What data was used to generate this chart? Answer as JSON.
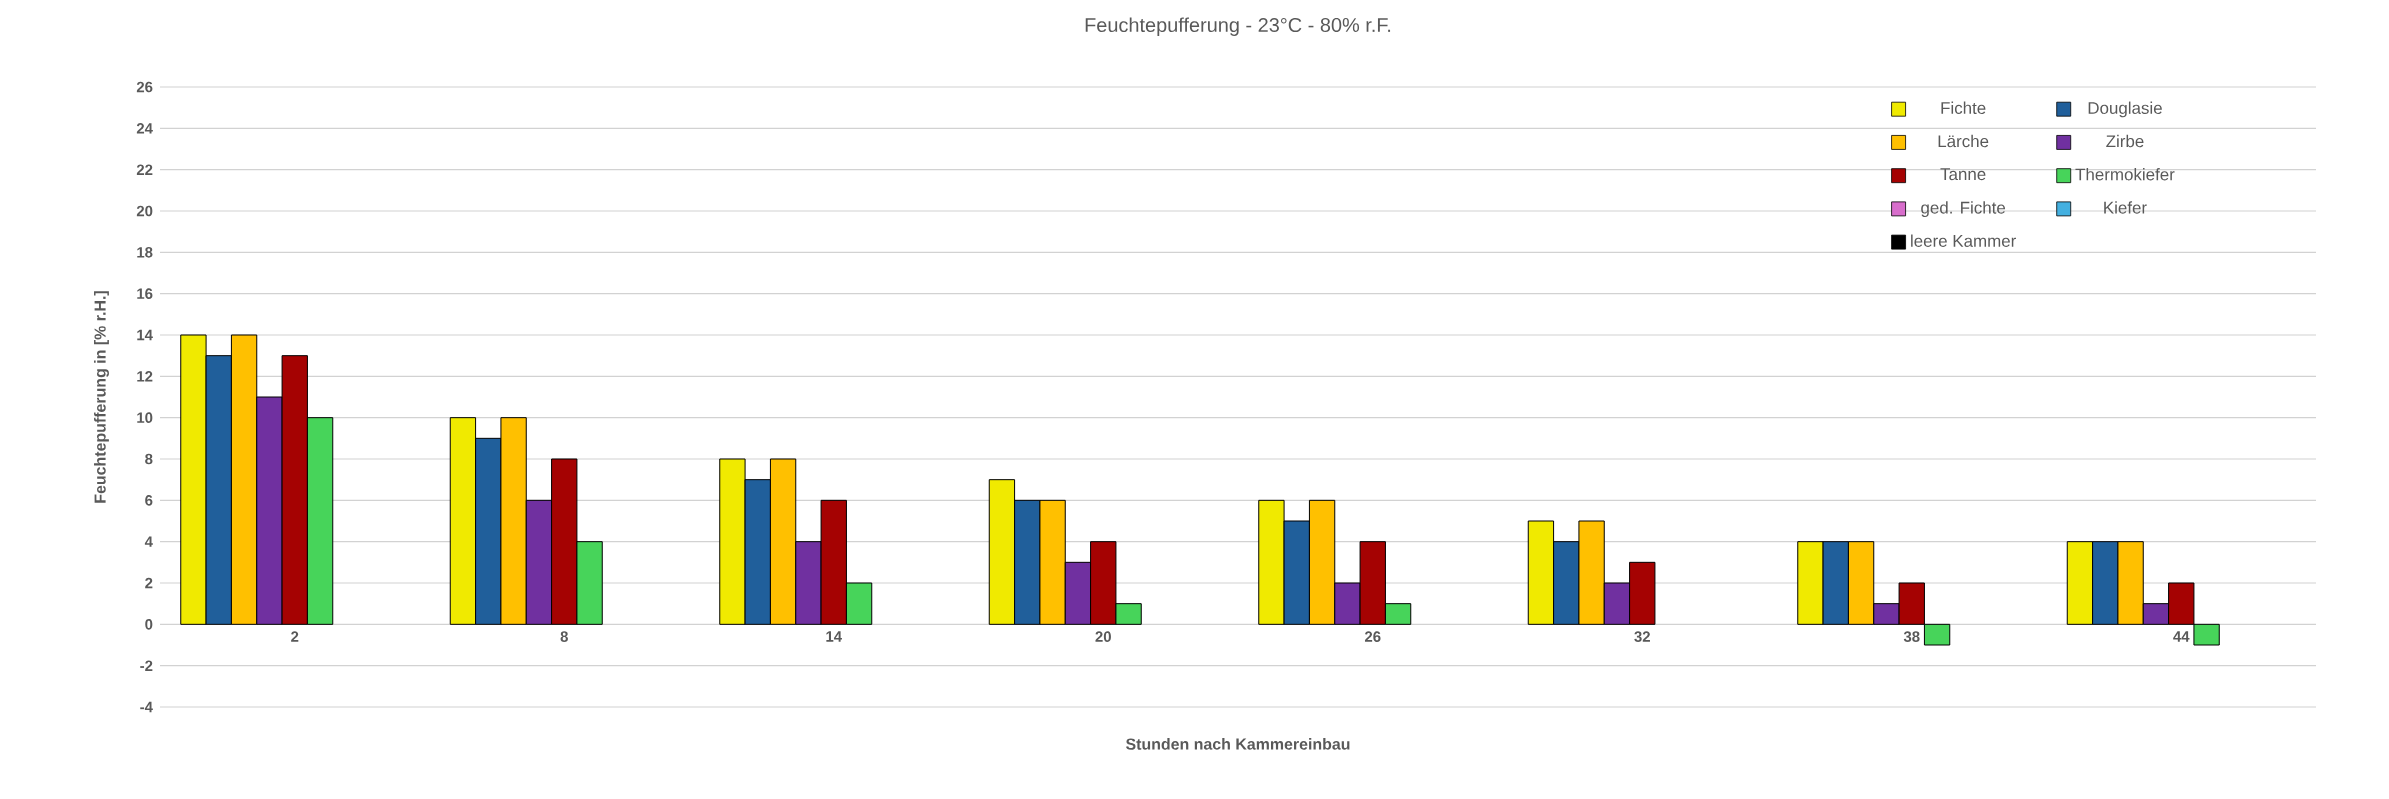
{
  "chart_data": {
    "type": "bar",
    "title": "Feuchtepufferung - 23°C - 80% r.F.",
    "xlabel": "Stunden nach Kammereinbau",
    "ylabel": "Feuchtepufferung in [% r.H.]",
    "categories": [
      "2",
      "8",
      "14",
      "20",
      "26",
      "32",
      "38",
      "44"
    ],
    "series": [
      {
        "name": "Fichte",
        "color": "#f0ea00",
        "values": [
          14,
          10,
          8,
          7,
          6,
          5,
          4,
          4
        ]
      },
      {
        "name": "Douglasie",
        "color": "#205f9b",
        "values": [
          13,
          9,
          7,
          6,
          5,
          4,
          4,
          4
        ]
      },
      {
        "name": "Lärche",
        "color": "#ffc000",
        "values": [
          14,
          10,
          8,
          6,
          6,
          5,
          4,
          4
        ]
      },
      {
        "name": "Zirbe",
        "color": "#7030a0",
        "values": [
          11,
          6,
          4,
          3,
          2,
          2,
          1,
          1
        ]
      },
      {
        "name": "Tanne",
        "color": "#a50202",
        "values": [
          13,
          8,
          6,
          4,
          4,
          3,
          2,
          2
        ]
      },
      {
        "name": "Thermokiefer",
        "color": "#47d45a",
        "values": [
          10,
          4,
          2,
          1,
          1,
          null,
          -1,
          -1
        ]
      },
      {
        "name": "ged. Fichte",
        "color": "#d86ecc",
        "values": [
          null,
          null,
          null,
          null,
          null,
          null,
          null,
          null
        ]
      },
      {
        "name": "Kiefer",
        "color": "#44b0e0",
        "values": [
          null,
          null,
          null,
          null,
          null,
          null,
          null,
          null
        ]
      },
      {
        "name": "leere Kammer",
        "color": "#000000",
        "values": [
          null,
          null,
          null,
          null,
          null,
          null,
          null,
          null
        ]
      }
    ],
    "ylim": [
      -4,
      26
    ],
    "yticks": [
      -4,
      -2,
      0,
      2,
      4,
      6,
      8,
      10,
      12,
      14,
      16,
      18,
      20,
      22,
      24,
      26
    ],
    "grid": "y",
    "legend": "top right"
  }
}
